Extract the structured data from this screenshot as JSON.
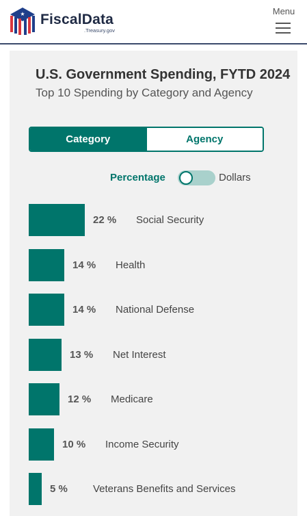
{
  "header": {
    "brand": "FiscalData",
    "brand_sub": ".Treasury.gov",
    "menu_label": "Menu"
  },
  "card": {
    "title": "U.S. Government Spending, FYTD 2024",
    "subtitle": "Top 10 Spending by Category and Agency"
  },
  "tabs": [
    {
      "label": "Category",
      "active": true
    },
    {
      "label": "Agency",
      "active": false
    }
  ],
  "toggle": {
    "left_label": "Percentage",
    "right_label": "Dollars",
    "state": "Percentage"
  },
  "colors": {
    "accent": "#00756b",
    "nav_border": "#3a4a6b",
    "logo_red": "#d9363e",
    "logo_blue": "#1f3f8a"
  },
  "icons": [
    "fiscaldata-logo-icon",
    "hamburger-menu-icon"
  ],
  "chart_data": {
    "type": "bar",
    "orientation": "horizontal",
    "unit": "%",
    "categories": [
      "Social Security",
      "Health",
      "National Defense",
      "Net Interest",
      "Medicare",
      "Income Security",
      "Veterans Benefits and Services"
    ],
    "values": [
      22,
      14,
      14,
      13,
      12,
      10,
      5
    ],
    "value_labels": [
      "22 %",
      "14 %",
      "14 %",
      "13 %",
      "12 %",
      "10 %",
      "5 %"
    ],
    "title": "",
    "xlabel": "",
    "ylabel": "",
    "grid": false,
    "legend": "none"
  }
}
